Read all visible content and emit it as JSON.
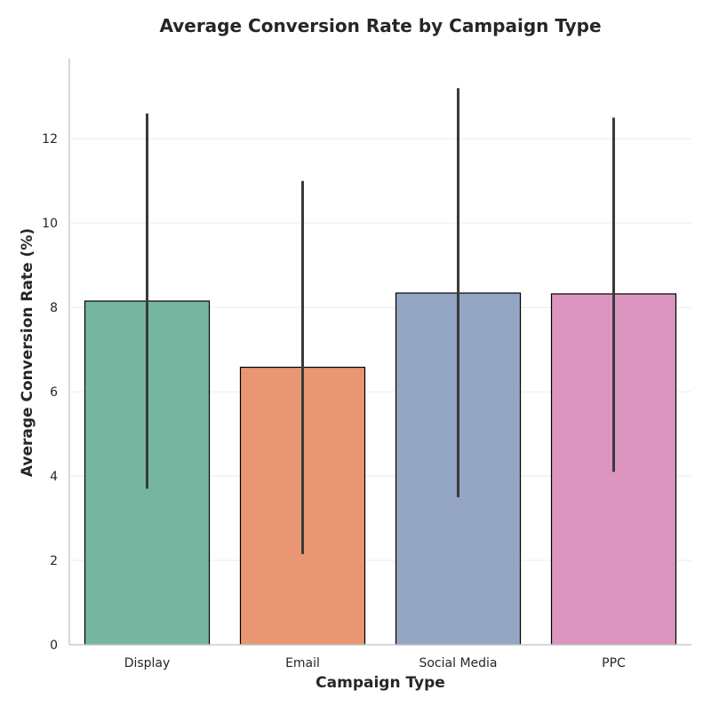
{
  "chart_data": {
    "type": "bar",
    "title": "Average Conversion Rate by Campaign Type",
    "xlabel": "Campaign Type",
    "ylabel": "Average Conversion Rate (%)",
    "categories": [
      "Display",
      "Email",
      "Social Media",
      "PPC"
    ],
    "values": [
      8.15,
      6.58,
      8.34,
      8.32
    ],
    "error_low": [
      3.7,
      2.15,
      3.5,
      4.1
    ],
    "error_high": [
      12.6,
      11.0,
      13.2,
      12.5
    ],
    "ylim": [
      0,
      13.9
    ],
    "yticks": [
      0,
      2,
      4,
      6,
      8,
      10,
      12
    ],
    "ytick_labels": [
      "0",
      "2",
      "4",
      "6",
      "8",
      "10",
      "12"
    ],
    "grid": "horizontal",
    "colors": [
      "#76b6a0",
      "#e99773",
      "#95a5c4",
      "#dc95bf"
    ],
    "bar_edge_color": "#000000",
    "error_bar_color": "#3a3a3a",
    "grid_color": "#ebebeb",
    "axis_color": "#cccccc"
  }
}
